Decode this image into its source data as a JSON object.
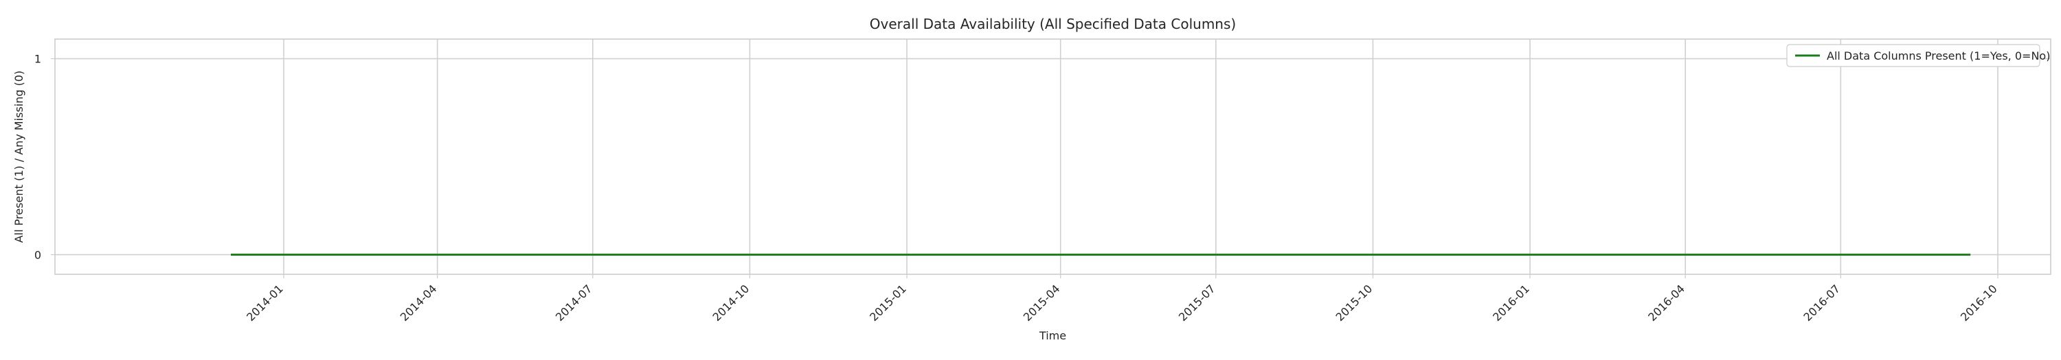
{
  "chart_data": {
    "type": "line",
    "title": "Overall Data Availability (All Specified Data Columns)",
    "xlabel": "Time",
    "ylabel": "All Present (1) / Any Missing (0)",
    "x_ticks": [
      "2014-01",
      "2014-04",
      "2014-07",
      "2014-10",
      "2015-01",
      "2015-04",
      "2015-07",
      "2015-10",
      "2016-01",
      "2016-04",
      "2016-07",
      "2016-10"
    ],
    "y_ticks": [
      "0",
      "1"
    ],
    "xlim": [
      "2013-08-20",
      "2016-11-01"
    ],
    "ylim": [
      -0.1,
      1.1
    ],
    "grid": true,
    "legend_position": "top-right",
    "series": [
      {
        "name": "All Data Columns Present (1=Yes, 0=No)",
        "color": "#1a7f1a",
        "x": [
          "2013-12-01",
          "2016-09-15"
        ],
        "y": [
          0,
          0
        ]
      }
    ]
  }
}
